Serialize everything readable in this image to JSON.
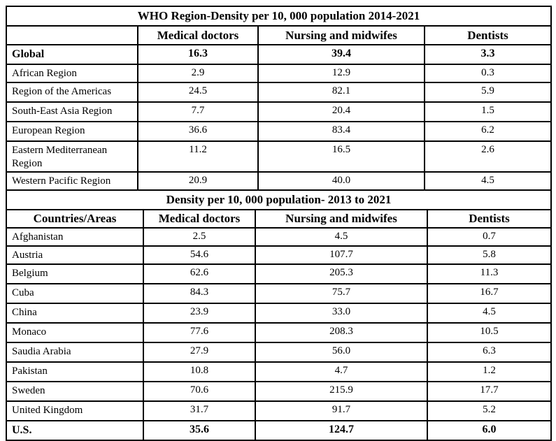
{
  "chart_data": [
    {
      "type": "table",
      "title": "WHO Region-Density per 10, 000 population 2014-2021",
      "columns": [
        "",
        "Medical doctors",
        "Nursing and midwifes",
        "Dentists"
      ],
      "rows": [
        {
          "label": "Global",
          "bold": true,
          "values": [
            "16.3",
            "39.4",
            "3.3"
          ]
        },
        {
          "label": "African Region",
          "values": [
            "2.9",
            "12.9",
            "0.3"
          ]
        },
        {
          "label": "Region of the Americas",
          "values": [
            "24.5",
            "82.1",
            "5.9"
          ]
        },
        {
          "label": "South-East Asia Region",
          "values": [
            "7.7",
            "20.4",
            "1.5"
          ]
        },
        {
          "label": "European Region",
          "values": [
            "36.6",
            "83.4",
            "6.2"
          ]
        },
        {
          "label": "Eastern Mediterranean Region",
          "values": [
            "11.2",
            "16.5",
            "2.6"
          ]
        },
        {
          "label": "Western Pacific Region",
          "values": [
            "20.9",
            "40.0",
            "4.5"
          ]
        }
      ]
    },
    {
      "type": "table",
      "title": "Density per 10, 000 population- 2013 to 2021",
      "columns": [
        "Countries/Areas",
        "Medical doctors",
        "Nursing and midwifes",
        "Dentists"
      ],
      "rows": [
        {
          "label": "Afghanistan",
          "values": [
            "2.5",
            "4.5",
            "0.7"
          ]
        },
        {
          "label": "Austria",
          "values": [
            "54.6",
            "107.7",
            "5.8"
          ]
        },
        {
          "label": "Belgium",
          "values": [
            "62.6",
            "205.3",
            "11.3"
          ]
        },
        {
          "label": "Cuba",
          "values": [
            "84.3",
            "75.7",
            "16.7"
          ]
        },
        {
          "label": "China",
          "values": [
            "23.9",
            "33.0",
            "4.5"
          ]
        },
        {
          "label": "Monaco",
          "values": [
            "77.6",
            "208.3",
            "10.5"
          ]
        },
        {
          "label": "Saudia Arabia",
          "values": [
            "27.9",
            "56.0",
            "6.3"
          ]
        },
        {
          "label": "Pakistan",
          "values": [
            "10.8",
            "4.7",
            "1.2"
          ]
        },
        {
          "label": "Sweden",
          "values": [
            "70.6",
            "215.9",
            "17.7"
          ]
        },
        {
          "label": "United Kingdom",
          "values": [
            "31.7",
            "91.7",
            "5.2"
          ]
        },
        {
          "label": "U.S.",
          "bold": true,
          "values": [
            "35.6",
            "124.7",
            "6.0"
          ]
        }
      ]
    }
  ]
}
